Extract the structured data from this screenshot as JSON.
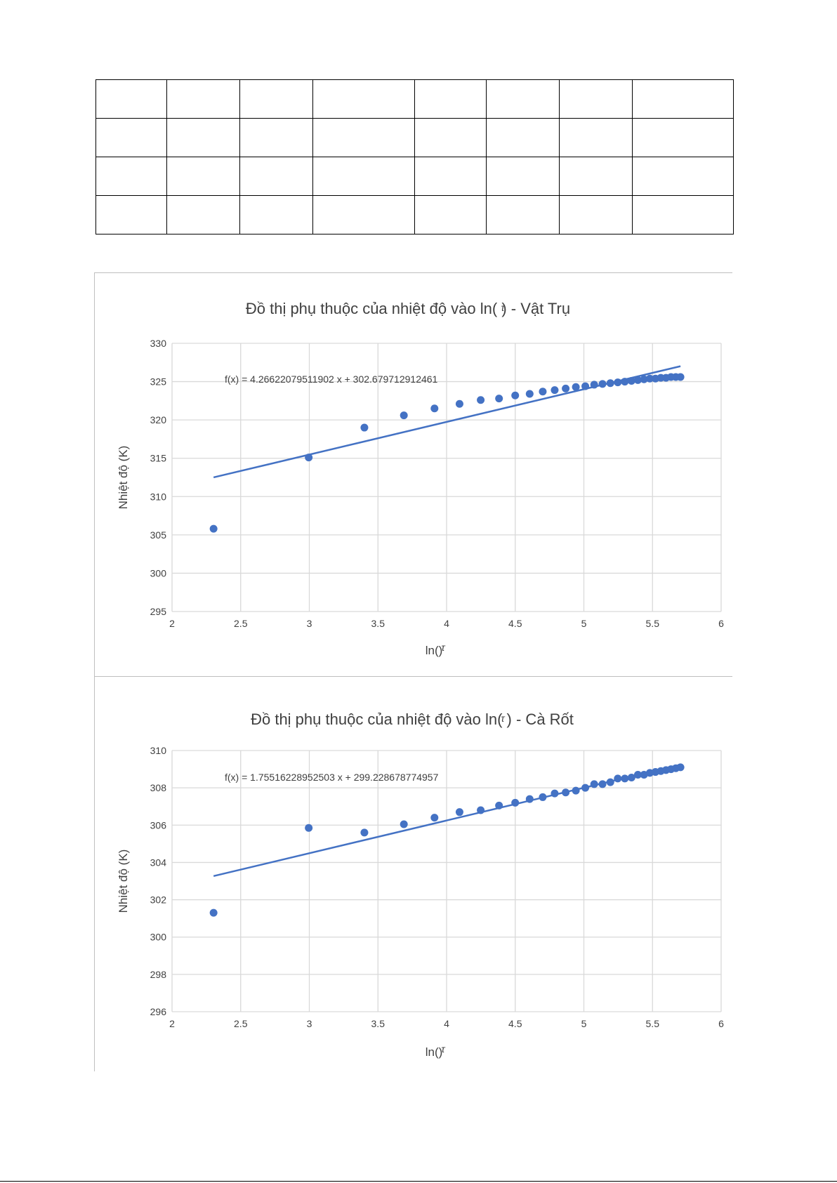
{
  "table": {
    "rows": 4,
    "columns": 8
  },
  "chart_data": [
    {
      "type": "scatter",
      "title": "Đồ thị phụ thuộc của nhiệt độ vào ln(  ) - Vật Trụ",
      "title_symbol": "τ",
      "xlabel": "ln()",
      "xlabel_symbol": "τ",
      "ylabel": "Nhiệt độ (K)",
      "xlim": [
        2,
        6
      ],
      "ylim": [
        295,
        330
      ],
      "xticks": [
        "2",
        "2.5",
        "3",
        "3.5",
        "4",
        "4.5",
        "5",
        "5.5",
        "6"
      ],
      "yticks": [
        "295",
        "300",
        "305",
        "310",
        "315",
        "320",
        "325",
        "330"
      ],
      "grid": true,
      "legend": "none",
      "trendline_label": "f(x) = 4.26622079511902 x + 302.679712912461",
      "trendline": {
        "slope": 4.26622079511902,
        "intercept": 302.679712912461,
        "x_range": [
          2.3026,
          5.7038
        ]
      },
      "color": "#4472C4",
      "series": [
        {
          "x": [
            2.3026,
            2.9957,
            3.4012,
            3.6889,
            3.912,
            4.0943,
            4.2485,
            4.382,
            4.4998,
            4.6052,
            4.7005,
            4.7875,
            4.8675,
            4.9416,
            5.0106,
            5.0752,
            5.1358,
            5.193,
            5.247,
            5.2983,
            5.3471,
            5.3936,
            5.4381,
            5.4806,
            5.5215,
            5.5607,
            5.5984,
            5.6348,
            5.6699,
            5.7038
          ],
          "y": [
            305.8,
            315.1,
            319.0,
            320.6,
            321.5,
            322.1,
            322.6,
            322.8,
            323.2,
            323.4,
            323.7,
            323.9,
            324.1,
            324.3,
            324.4,
            324.6,
            324.7,
            324.8,
            324.9,
            325.0,
            325.1,
            325.2,
            325.3,
            325.4,
            325.4,
            325.5,
            325.5,
            325.6,
            325.6,
            325.6
          ]
        }
      ]
    },
    {
      "type": "scatter",
      "title": "Đồ thị phụ thuộc của nhiệt độ vào ln(  ) - Cà Rốt",
      "title_symbol": "τ",
      "xlabel": "ln()",
      "xlabel_symbol": "τ",
      "ylabel": "Nhiệt độ (K)",
      "xlim": [
        2,
        6
      ],
      "ylim": [
        296,
        310
      ],
      "xticks": [
        "2",
        "2.5",
        "3",
        "3.5",
        "4",
        "4.5",
        "5",
        "5.5",
        "6"
      ],
      "yticks": [
        "296",
        "298",
        "300",
        "302",
        "304",
        "306",
        "308",
        "310"
      ],
      "grid": true,
      "legend": "none",
      "trendline_label": "f(x) = 1.75516228952503 x + 299.228678774957",
      "trendline": {
        "slope": 1.75516228952503,
        "intercept": 299.228678774957,
        "x_range": [
          2.3026,
          5.7038
        ]
      },
      "color": "#4472C4",
      "series": [
        {
          "x": [
            2.3026,
            2.9957,
            3.4012,
            3.6889,
            3.912,
            4.0943,
            4.2485,
            4.382,
            4.4998,
            4.6052,
            4.7005,
            4.7875,
            4.8675,
            4.9416,
            5.0106,
            5.0752,
            5.1358,
            5.193,
            5.247,
            5.2983,
            5.3471,
            5.3936,
            5.4381,
            5.4806,
            5.5215,
            5.5607,
            5.5984,
            5.6348,
            5.6699,
            5.7038
          ],
          "y": [
            301.3,
            305.85,
            305.6,
            306.05,
            306.4,
            306.7,
            306.8,
            307.05,
            307.2,
            307.4,
            307.5,
            307.7,
            307.75,
            307.85,
            308.0,
            308.2,
            308.2,
            308.3,
            308.5,
            308.5,
            308.55,
            308.7,
            308.7,
            308.8,
            308.85,
            308.9,
            308.95,
            309.0,
            309.05,
            309.1
          ]
        }
      ]
    }
  ]
}
